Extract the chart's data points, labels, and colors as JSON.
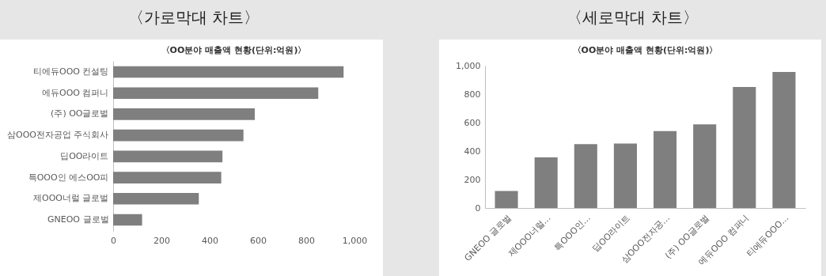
{
  "chart_data": [
    {
      "type": "bar",
      "title": "〈가로막대 차트〉",
      "subtitle": "〈OO분야 매출액 현황(단위:억원)〉",
      "orientation": "horizontal",
      "categories": [
        "티에듀OOO 컨설팅",
        "에듀OOO 컴퍼니",
        "(주) OO글로벌",
        "삼OOO전자공업 주식회사",
        "딥OO라이트",
        "특OOO인 에스OO피",
        "제OOO너럴 글로벌",
        "GNEOO 글로벌"
      ],
      "values": [
        955,
        850,
        587,
        540,
        453,
        448,
        355,
        120
      ],
      "color": "#7f7f7f",
      "xlim": [
        0,
        1000
      ],
      "xticks": [
        0,
        200,
        400,
        600,
        800,
        {
          "value": 1000,
          "label": "1,000"
        }
      ],
      "grid": false
    },
    {
      "type": "bar",
      "title": "〈세로막대 차트〉",
      "subtitle": "〈OO분야 매출액 현황(단위:억원)〉",
      "categories": [
        "GNEOO 글로벌",
        "제OOO너럴…",
        "특OOO인…",
        "딥OO라이트",
        "삼OOO전자공…",
        "(주) OO글로벌",
        "에듀OOO 컴퍼니",
        "티에듀OOO…"
      ],
      "values": [
        120,
        355,
        448,
        453,
        540,
        587,
        850,
        955
      ],
      "color": "#7f7f7f",
      "ylim": [
        0,
        1000
      ],
      "yticks": [
        0,
        200,
        400,
        600,
        800,
        {
          "value": 1000,
          "label": "1,000"
        }
      ],
      "grid": false
    }
  ]
}
